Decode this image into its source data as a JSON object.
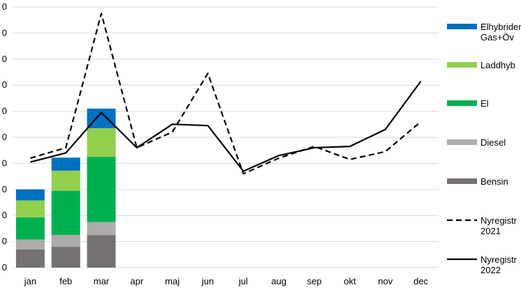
{
  "chart_data": {
    "type": "bar",
    "categories": [
      "jan",
      "feb",
      "mar",
      "apr",
      "maj",
      "jun",
      "jul",
      "aug",
      "sep",
      "okt",
      "nov",
      "dec"
    ],
    "y_tick_labels": [
      "0",
      "0",
      "0",
      "0",
      "0",
      "0",
      "0",
      "0",
      "0",
      "0",
      "0"
    ],
    "ylim": [
      0,
      10
    ],
    "grid": true,
    "legend_position": "right",
    "series": [
      {
        "name": "Bensin",
        "kind": "stacked-bar",
        "color": "#767171",
        "values": [
          0.7,
          0.8,
          1.25,
          null,
          null,
          null,
          null,
          null,
          null,
          null,
          null,
          null
        ]
      },
      {
        "name": "Diesel",
        "kind": "stacked-bar",
        "color": "#AEABAB",
        "values": [
          0.38,
          0.45,
          0.5,
          null,
          null,
          null,
          null,
          null,
          null,
          null,
          null,
          null
        ]
      },
      {
        "name": "El",
        "kind": "stacked-bar",
        "color": "#00B050",
        "values": [
          0.85,
          1.7,
          2.5,
          null,
          null,
          null,
          null,
          null,
          null,
          null,
          null,
          null
        ]
      },
      {
        "name": "Laddhyb",
        "kind": "stacked-bar",
        "color": "#92D050",
        "values": [
          0.65,
          0.77,
          1.1,
          null,
          null,
          null,
          null,
          null,
          null,
          null,
          null,
          null
        ]
      },
      {
        "name": "Elhybrider Gas+Öv",
        "kind": "stacked-bar",
        "color": "#0070C0",
        "values": [
          0.42,
          0.5,
          0.75,
          null,
          null,
          null,
          null,
          null,
          null,
          null,
          null,
          null
        ]
      },
      {
        "name": "Nyregistr 2021",
        "kind": "line",
        "style": "dashed",
        "color": "#000000",
        "values": [
          4.2,
          4.6,
          9.75,
          4.6,
          5.2,
          7.45,
          3.6,
          4.2,
          4.65,
          4.15,
          4.45,
          5.6
        ]
      },
      {
        "name": "Nyregistr 2022",
        "kind": "line",
        "style": "solid",
        "color": "#000000",
        "values": [
          4.05,
          4.4,
          5.95,
          4.6,
          5.5,
          5.45,
          3.7,
          4.3,
          4.6,
          4.65,
          5.3,
          7.15
        ]
      }
    ],
    "legend_items": [
      {
        "label_lines": [
          "Elhybrider",
          "Gas+Öv"
        ],
        "color": "#0070C0",
        "marker": "box"
      },
      {
        "label_lines": [
          "Laddhyb"
        ],
        "color": "#92D050",
        "marker": "box"
      },
      {
        "label_lines": [
          "El"
        ],
        "color": "#00B050",
        "marker": "box"
      },
      {
        "label_lines": [
          "Diesel"
        ],
        "color": "#AEABAB",
        "marker": "box"
      },
      {
        "label_lines": [
          "Bensin"
        ],
        "color": "#767171",
        "marker": "box"
      },
      {
        "label_lines": [
          "Nyregistr",
          "2021"
        ],
        "color": "#000000",
        "marker": "dashed"
      },
      {
        "label_lines": [
          "Nyregistr",
          "2022"
        ],
        "color": "#000000",
        "marker": "solid"
      }
    ]
  }
}
